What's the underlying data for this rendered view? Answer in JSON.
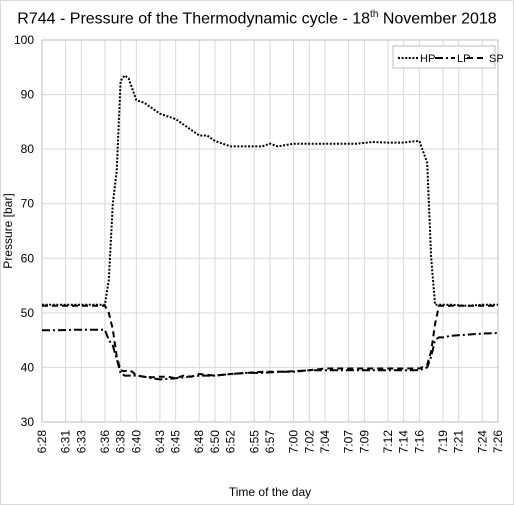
{
  "chart_data": {
    "type": "line",
    "title": {
      "before": "R744 - Pressure of the Thermodynamic cycle - 18",
      "sup": "th",
      "after": " November 2018"
    },
    "xlabel": "Time of the day",
    "ylabel": "Pressure [bar]",
    "ylim": [
      30,
      100
    ],
    "yticks": [
      30,
      40,
      50,
      60,
      70,
      80,
      90,
      100
    ],
    "xlim": [
      "6:28",
      "7:26"
    ],
    "xticks": [
      "6:28",
      "6:31",
      "6:33",
      "6:36",
      "6:38",
      "6:40",
      "6:43",
      "6:45",
      "6:48",
      "6:50",
      "6:52",
      "6:55",
      "6:57",
      "7:00",
      "7:02",
      "7:04",
      "7:07",
      "7:09",
      "7:12",
      "7:14",
      "7:16",
      "7:19",
      "7:21",
      "7:24",
      "7:26"
    ],
    "grid": true,
    "legend": "top-right, inside plot",
    "series": [
      {
        "name": "HP",
        "style": "dotted",
        "color": "#000000",
        "points": [
          [
            "6:28",
            51.5
          ],
          [
            "6:30",
            51.5
          ],
          [
            "6:32",
            51.5
          ],
          [
            "6:34",
            51.5
          ],
          [
            "6:36",
            51.5
          ],
          [
            "6:36:30",
            56
          ],
          [
            "6:37",
            70
          ],
          [
            "6:37:30",
            76
          ],
          [
            "6:38",
            92.5
          ],
          [
            "6:38:30",
            93.5
          ],
          [
            "6:39",
            93
          ],
          [
            "6:39:30",
            91
          ],
          [
            "6:40",
            89
          ],
          [
            "6:41",
            88.5
          ],
          [
            "6:42",
            87.5
          ],
          [
            "6:43",
            86.5
          ],
          [
            "6:44",
            86
          ],
          [
            "6:45",
            85.5
          ],
          [
            "6:46",
            84.5
          ],
          [
            "6:47",
            83.5
          ],
          [
            "6:48",
            82.5
          ],
          [
            "6:49",
            82.5
          ],
          [
            "6:50",
            81.5
          ],
          [
            "6:51",
            81
          ],
          [
            "6:52",
            80.5
          ],
          [
            "6:54",
            80.5
          ],
          [
            "6:56",
            80.5
          ],
          [
            "6:57",
            81
          ],
          [
            "6:58",
            80.5
          ],
          [
            "7:00",
            81
          ],
          [
            "7:02",
            81
          ],
          [
            "7:04",
            81
          ],
          [
            "7:06",
            81
          ],
          [
            "7:08",
            81
          ],
          [
            "7:10",
            81.3
          ],
          [
            "7:12",
            81.2
          ],
          [
            "7:14",
            81.2
          ],
          [
            "7:15",
            81.4
          ],
          [
            "7:16",
            81.5
          ],
          [
            "7:16:30",
            79.5
          ],
          [
            "7:17",
            77.5
          ],
          [
            "7:17:30",
            60
          ],
          [
            "7:18",
            51.5
          ],
          [
            "7:20",
            51.5
          ],
          [
            "7:22",
            51.3
          ],
          [
            "7:24",
            51.5
          ],
          [
            "7:26",
            51.5
          ]
        ]
      },
      {
        "name": "LP",
        "style": "dash-dot",
        "color": "#000000",
        "points": [
          [
            "6:28",
            46.8
          ],
          [
            "6:30",
            46.8
          ],
          [
            "6:32",
            46.9
          ],
          [
            "6:34",
            46.9
          ],
          [
            "6:36",
            46.9
          ],
          [
            "6:36:30",
            45
          ],
          [
            "6:37",
            44
          ],
          [
            "6:37:30",
            41.5
          ],
          [
            "6:38",
            39
          ],
          [
            "6:38:30",
            38.5
          ],
          [
            "6:39",
            38.5
          ],
          [
            "6:40",
            38.5
          ],
          [
            "6:41",
            38.3
          ],
          [
            "6:42",
            38
          ],
          [
            "6:43",
            37.8
          ],
          [
            "6:44",
            37.9
          ],
          [
            "6:45",
            38
          ],
          [
            "6:46",
            38.2
          ],
          [
            "6:48",
            38.5
          ],
          [
            "6:50",
            38.5
          ],
          [
            "6:52",
            38.8
          ],
          [
            "6:54",
            39
          ],
          [
            "6:56",
            39
          ],
          [
            "6:58",
            39.2
          ],
          [
            "7:00",
            39.2
          ],
          [
            "7:02",
            39.5
          ],
          [
            "7:04",
            39.5
          ],
          [
            "7:06",
            39.5
          ],
          [
            "7:08",
            39.5
          ],
          [
            "7:10",
            39.5
          ],
          [
            "7:12",
            39.5
          ],
          [
            "7:14",
            39.5
          ],
          [
            "7:16",
            39.5
          ],
          [
            "7:17",
            40
          ],
          [
            "7:17:30",
            42
          ],
          [
            "7:18",
            45
          ],
          [
            "7:18:30",
            45.5
          ],
          [
            "7:19",
            45.5
          ],
          [
            "7:20",
            45.8
          ],
          [
            "7:22",
            46
          ],
          [
            "7:24",
            46.2
          ],
          [
            "7:26",
            46.3
          ]
        ]
      },
      {
        "name": "SP",
        "style": "dashed",
        "color": "#000000",
        "points": [
          [
            "6:28",
            51.3
          ],
          [
            "6:30",
            51.3
          ],
          [
            "6:32",
            51.3
          ],
          [
            "6:34",
            51.3
          ],
          [
            "6:36",
            51.3
          ],
          [
            "6:36:30",
            50
          ],
          [
            "6:37",
            47
          ],
          [
            "6:37:30",
            42
          ],
          [
            "6:38",
            39.5
          ],
          [
            "6:38:30",
            39.3
          ],
          [
            "6:39",
            39.5
          ],
          [
            "6:39:30",
            39.2
          ],
          [
            "6:40",
            38.5
          ],
          [
            "6:41",
            38.3
          ],
          [
            "6:42",
            38.2
          ],
          [
            "6:43",
            38.3
          ],
          [
            "6:44",
            38.3
          ],
          [
            "6:45",
            38
          ],
          [
            "6:46",
            38.5
          ],
          [
            "6:47",
            38.3
          ],
          [
            "6:48",
            38.8
          ],
          [
            "6:50",
            38.5
          ],
          [
            "6:52",
            38.8
          ],
          [
            "6:54",
            39
          ],
          [
            "6:56",
            39.2
          ],
          [
            "6:58",
            39.2
          ],
          [
            "7:00",
            39.3
          ],
          [
            "7:02",
            39.5
          ],
          [
            "7:04",
            39.8
          ],
          [
            "7:06",
            39.8
          ],
          [
            "7:08",
            39.8
          ],
          [
            "7:10",
            39.8
          ],
          [
            "7:12",
            39.8
          ],
          [
            "7:14",
            39.8
          ],
          [
            "7:16",
            39.8
          ],
          [
            "7:17",
            40.5
          ],
          [
            "7:17:30",
            43
          ],
          [
            "7:18",
            48
          ],
          [
            "7:18:30",
            51.3
          ],
          [
            "7:20",
            51.3
          ],
          [
            "7:22",
            51.3
          ],
          [
            "7:24",
            51.3
          ],
          [
            "7:26",
            51.3
          ]
        ]
      }
    ]
  }
}
